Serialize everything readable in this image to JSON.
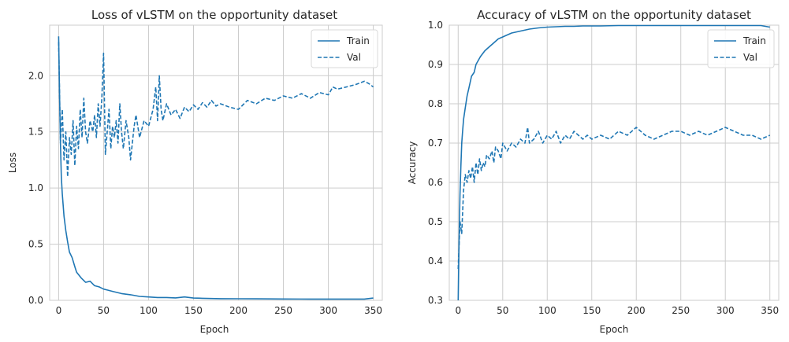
{
  "colors": {
    "series": "#1f77b4",
    "grid": "#cccccc",
    "spine": "#cccccc",
    "legend_border": "#d9d9d9"
  },
  "chart_data": [
    {
      "type": "line",
      "title": "Loss of vLSTM on the opportunity dataset",
      "xlabel": "Epoch",
      "ylabel": "Loss",
      "xlim": [
        -10,
        360
      ],
      "ylim": [
        0.0,
        2.45
      ],
      "xticks": [
        0,
        50,
        100,
        150,
        200,
        250,
        300,
        350
      ],
      "yticks": [
        0.0,
        0.5,
        1.0,
        1.5,
        2.0
      ],
      "ytick_labels": [
        "0.0",
        "0.5",
        "1.0",
        "1.5",
        "2.0"
      ],
      "grid": true,
      "legend": "top-right",
      "series": [
        {
          "name": "Train",
          "style": "solid",
          "x": [
            0,
            1,
            2,
            3,
            4,
            5,
            6,
            8,
            10,
            12,
            15,
            18,
            20,
            25,
            30,
            35,
            40,
            45,
            50,
            55,
            60,
            65,
            70,
            80,
            90,
            100,
            110,
            120,
            130,
            140,
            150,
            160,
            180,
            200,
            220,
            250,
            280,
            300,
            320,
            340,
            350
          ],
          "y": [
            2.35,
            1.85,
            1.4,
            1.1,
            0.95,
            0.85,
            0.75,
            0.62,
            0.52,
            0.43,
            0.38,
            0.3,
            0.25,
            0.2,
            0.16,
            0.17,
            0.13,
            0.12,
            0.1,
            0.09,
            0.08,
            0.07,
            0.06,
            0.05,
            0.035,
            0.03,
            0.025,
            0.025,
            0.022,
            0.03,
            0.02,
            0.018,
            0.015,
            0.014,
            0.013,
            0.012,
            0.011,
            0.011,
            0.011,
            0.011,
            0.02
          ]
        },
        {
          "name": "Val",
          "style": "dashed",
          "x": [
            0,
            2,
            4,
            6,
            8,
            10,
            12,
            14,
            16,
            18,
            20,
            22,
            24,
            26,
            28,
            30,
            32,
            35,
            38,
            40,
            42,
            44,
            46,
            48,
            50,
            52,
            54,
            56,
            58,
            60,
            62,
            64,
            66,
            68,
            70,
            72,
            75,
            78,
            80,
            84,
            86,
            90,
            95,
            100,
            105,
            108,
            110,
            112,
            114,
            116,
            120,
            125,
            130,
            135,
            140,
            145,
            150,
            155,
            160,
            165,
            170,
            175,
            180,
            190,
            200,
            210,
            220,
            230,
            240,
            250,
            260,
            270,
            280,
            290,
            300,
            305,
            310,
            320,
            330,
            340,
            345,
            350
          ],
          "y": [
            2.3,
            1.4,
            1.7,
            1.25,
            1.5,
            1.1,
            1.45,
            1.3,
            1.6,
            1.2,
            1.55,
            1.35,
            1.7,
            1.45,
            1.8,
            1.5,
            1.4,
            1.6,
            1.5,
            1.65,
            1.45,
            1.75,
            1.55,
            1.8,
            2.2,
            1.3,
            1.5,
            1.7,
            1.35,
            1.55,
            1.45,
            1.6,
            1.4,
            1.75,
            1.5,
            1.35,
            1.6,
            1.45,
            1.25,
            1.55,
            1.65,
            1.45,
            1.6,
            1.55,
            1.7,
            1.9,
            1.6,
            2.0,
            1.7,
            1.6,
            1.75,
            1.65,
            1.7,
            1.62,
            1.72,
            1.68,
            1.74,
            1.7,
            1.76,
            1.72,
            1.78,
            1.73,
            1.75,
            1.72,
            1.7,
            1.78,
            1.75,
            1.8,
            1.78,
            1.82,
            1.8,
            1.84,
            1.8,
            1.85,
            1.83,
            1.9,
            1.88,
            1.9,
            1.92,
            1.95,
            1.93,
            1.9
          ]
        }
      ]
    },
    {
      "type": "line",
      "title": "Accuracy of vLSTM on the opportunity dataset",
      "xlabel": "Epoch",
      "ylabel": "Accuracy",
      "xlim": [
        -10,
        360
      ],
      "ylim": [
        0.3,
        1.0
      ],
      "xticks": [
        0,
        50,
        100,
        150,
        200,
        250,
        300,
        350
      ],
      "yticks": [
        0.3,
        0.4,
        0.5,
        0.6,
        0.7,
        0.8,
        0.9,
        1.0
      ],
      "ytick_labels": [
        "0.3",
        "0.4",
        "0.5",
        "0.6",
        "0.7",
        "0.8",
        "0.9",
        "1.0"
      ],
      "grid": true,
      "legend": "top-right",
      "series": [
        {
          "name": "Train",
          "style": "solid",
          "x": [
            0,
            1,
            2,
            3,
            4,
            5,
            6,
            8,
            10,
            12,
            15,
            18,
            20,
            25,
            30,
            35,
            40,
            45,
            50,
            55,
            60,
            70,
            80,
            90,
            100,
            110,
            120,
            130,
            140,
            150,
            160,
            180,
            200,
            220,
            250,
            280,
            300,
            320,
            340,
            350
          ],
          "y": [
            0.3,
            0.45,
            0.57,
            0.64,
            0.7,
            0.73,
            0.76,
            0.79,
            0.82,
            0.84,
            0.87,
            0.88,
            0.9,
            0.92,
            0.935,
            0.945,
            0.955,
            0.965,
            0.97,
            0.975,
            0.98,
            0.985,
            0.99,
            0.993,
            0.995,
            0.996,
            0.997,
            0.997,
            0.998,
            0.998,
            0.998,
            0.999,
            0.999,
            0.999,
            0.999,
            0.999,
            0.999,
            0.999,
            0.999,
            0.995
          ]
        },
        {
          "name": "Val",
          "style": "dashed",
          "x": [
            0,
            2,
            4,
            6,
            8,
            10,
            12,
            14,
            16,
            18,
            20,
            22,
            24,
            26,
            28,
            30,
            32,
            35,
            38,
            40,
            42,
            45,
            48,
            50,
            55,
            60,
            65,
            70,
            75,
            78,
            80,
            85,
            90,
            95,
            100,
            105,
            110,
            115,
            120,
            125,
            130,
            135,
            140,
            145,
            150,
            160,
            170,
            180,
            190,
            200,
            210,
            220,
            230,
            240,
            250,
            260,
            270,
            280,
            290,
            300,
            310,
            320,
            330,
            340,
            350
          ],
          "y": [
            0.38,
            0.5,
            0.47,
            0.58,
            0.62,
            0.6,
            0.63,
            0.61,
            0.64,
            0.6,
            0.65,
            0.62,
            0.66,
            0.63,
            0.65,
            0.64,
            0.67,
            0.66,
            0.68,
            0.65,
            0.69,
            0.68,
            0.66,
            0.7,
            0.68,
            0.7,
            0.69,
            0.71,
            0.7,
            0.74,
            0.7,
            0.71,
            0.73,
            0.7,
            0.72,
            0.71,
            0.73,
            0.7,
            0.72,
            0.71,
            0.73,
            0.72,
            0.71,
            0.72,
            0.71,
            0.72,
            0.71,
            0.73,
            0.72,
            0.74,
            0.72,
            0.71,
            0.72,
            0.73,
            0.73,
            0.72,
            0.73,
            0.72,
            0.73,
            0.74,
            0.73,
            0.72,
            0.72,
            0.71,
            0.72
          ]
        }
      ]
    }
  ]
}
